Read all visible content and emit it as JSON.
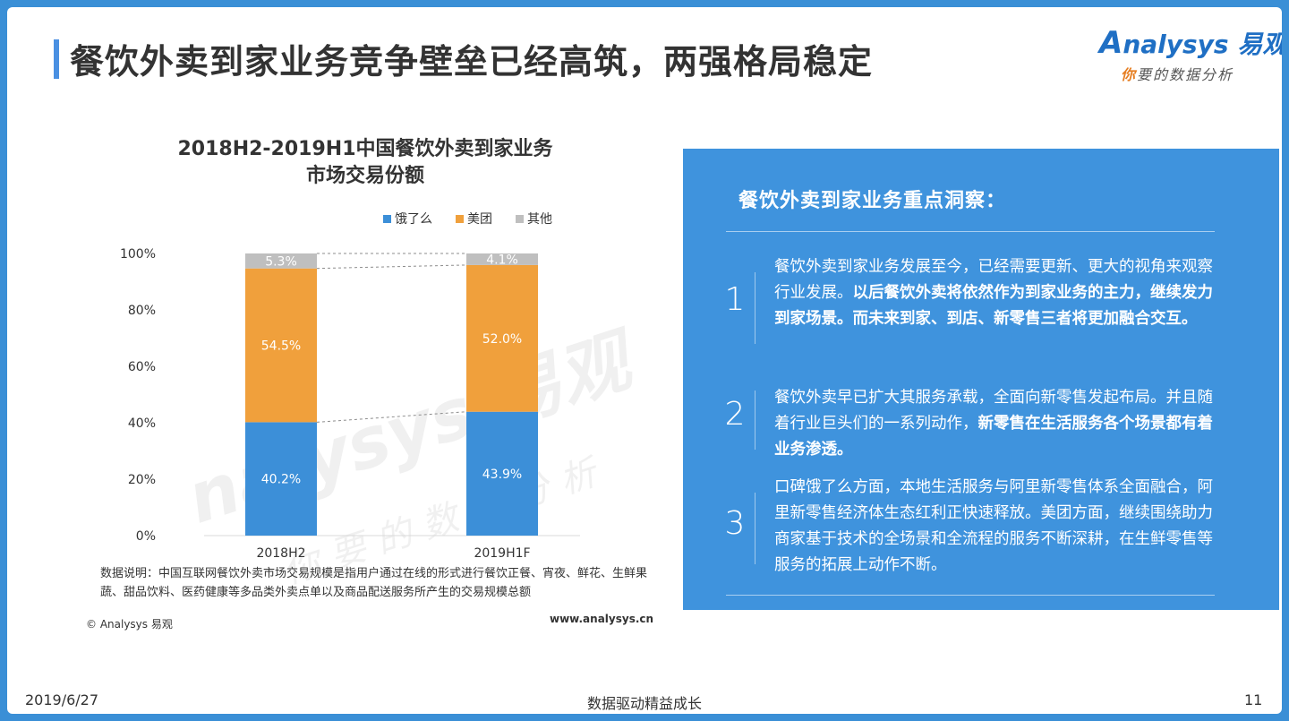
{
  "header": {
    "title": "餐饮外卖到家业务竞争壁垒已经高筑，两强格局稳定",
    "logo_brand": "nalysys",
    "logo_brand_prefix": "A",
    "logo_cn": "易观",
    "logo_tagline_first": "你",
    "logo_tagline_rest": "要的数据分析"
  },
  "chart_data": {
    "type": "bar",
    "stacked": true,
    "title_line1": "2018H2-2019H1中国餐饮外卖到家业务",
    "title_line2": "市场交易份额",
    "categories": [
      "2018H2",
      "2019H1F"
    ],
    "series": [
      {
        "name": "饿了么",
        "values": [
          40.2,
          43.9
        ],
        "labels": [
          "40.2%",
          "43.9%"
        ],
        "color": "#3c8fd8"
      },
      {
        "name": "美团",
        "values": [
          54.5,
          52.0
        ],
        "labels": [
          "54.5%",
          "52.0%"
        ],
        "color": "#f0a03c"
      },
      {
        "name": "其他",
        "values": [
          5.3,
          4.1
        ],
        "labels": [
          "5.3%",
          "4.1%"
        ],
        "color": "#bfbfbf"
      }
    ],
    "yticks": [
      "0%",
      "20%",
      "40%",
      "60%",
      "80%",
      "100%"
    ],
    "ylim": [
      0,
      100
    ],
    "legend_position": "top-right",
    "grid": false
  },
  "watermark": {
    "brand": "nalysys 易观",
    "tagline": "你要的数据分析"
  },
  "notes": {
    "data_note": "数据说明：中国互联网餐饮外卖市场交易规模是指用户通过在线的形式进行餐饮正餐、宵夜、鲜花、生鲜果蔬、甜品饮料、医药健康等多品类外卖点单以及商品配送服务所产生的交易规模总额",
    "copyright": "© Analysys 易观",
    "website": "www.analysys.cn"
  },
  "panel": {
    "title": "餐饮外卖到家业务重点洞察：",
    "items": [
      {
        "num": "1",
        "plain": "餐饮外卖到家业务发展至今，已经需要更新、更大的视角来观察行业发展。",
        "bold": "以后餐饮外卖将依然作为到家业务的主力，继续发力到家场景。而未来到家、到店、新零售三者将更加融合交互。"
      },
      {
        "num": "2",
        "plain": "餐饮外卖早已扩大其服务承载，全面向新零售发起布局。并且随着行业巨头们的一系列动作，",
        "bold": "新零售在生活服务各个场景都有着业务渗透。"
      },
      {
        "num": "3",
        "plain": "口碑饿了么方面，本地生活服务与阿里新零售体系全面融合，阿里新零售经济体生态红利正快速释放。美团方面，继续围绕助力商家基于技术的全场景和全流程的服务不断深耕，在生鲜零售等服务的拓展上动作不断。",
        "bold": ""
      }
    ]
  },
  "footer": {
    "date": "2019/6/27",
    "center": "数据驱动精益成长",
    "page": "11"
  }
}
